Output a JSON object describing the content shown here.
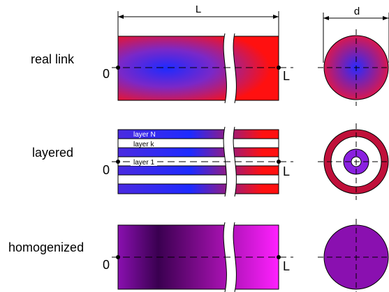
{
  "dimensions": {
    "length_label": "L",
    "diameter_label": "d"
  },
  "rows": [
    {
      "id": "real",
      "label": "real link",
      "start_label": "0",
      "end_label": "L"
    },
    {
      "id": "layered",
      "label": "layered",
      "start_label": "0",
      "end_label": "L",
      "layers": {
        "top": "layer N",
        "middle": "layer k",
        "bottom": "layer 1"
      }
    },
    {
      "id": "homogenized",
      "label": "homogenized",
      "start_label": "0",
      "end_label": "L"
    }
  ],
  "colors": {
    "blue": "#2020ff",
    "red": "#ff1010",
    "dark_red": "#c0103a",
    "dark_purple": "#3a0050",
    "purple": "#8a10b0",
    "magenta": "#ff20ff",
    "violet": "#8a20e0"
  }
}
